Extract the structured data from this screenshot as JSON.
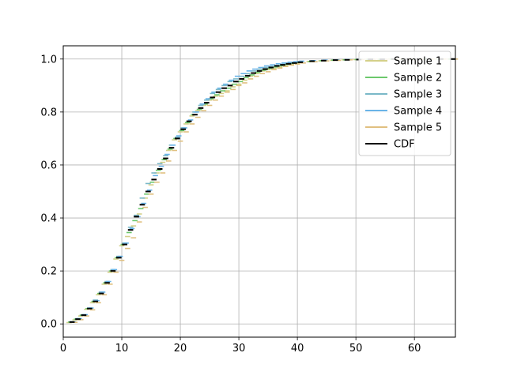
{
  "chart_data": {
    "type": "line",
    "title": "",
    "xlabel": "",
    "ylabel": "",
    "xlim": [
      0,
      67
    ],
    "ylim": [
      -0.05,
      1.05
    ],
    "xticks": [
      0,
      10,
      20,
      30,
      40,
      50,
      60
    ],
    "yticks": [
      0.0,
      0.2,
      0.4,
      0.6,
      0.8,
      1.0
    ],
    "xtick_labels": [
      "0",
      "10",
      "20",
      "30",
      "40",
      "50",
      "60"
    ],
    "ytick_labels": [
      "0.0",
      "0.2",
      "0.4",
      "0.6",
      "0.8",
      "1.0"
    ],
    "grid": true,
    "legend_position": "top-right",
    "x": [
      1.5,
      2.5,
      3.5,
      4.5,
      5.5,
      6.5,
      7.5,
      8.5,
      9.5,
      10.5,
      11.5,
      12.5,
      13.5,
      14.5,
      15.5,
      16.5,
      17.5,
      18.5,
      19.5,
      20.5,
      21.5,
      22.5,
      23.5,
      24.5,
      25.5,
      26.5,
      27.5,
      28.5,
      29.5,
      30.5,
      31.5,
      32.5,
      33.5,
      34.5,
      35.5,
      36.5,
      37.5,
      38.5,
      39.5,
      40.5,
      42.5,
      44.5,
      46.5,
      48.5,
      50.5,
      52.5,
      54.5,
      56.5,
      58.5,
      60.5,
      62.5,
      64.5,
      66.5
    ],
    "series": [
      {
        "name": "Sample 1",
        "color": "#d4d08a",
        "values": [
          0.005,
          0.015,
          0.03,
          0.055,
          0.08,
          0.11,
          0.15,
          0.195,
          0.245,
          0.295,
          0.33,
          0.37,
          0.415,
          0.475,
          0.525,
          0.57,
          0.61,
          0.655,
          0.695,
          0.725,
          0.755,
          0.785,
          0.805,
          0.825,
          0.845,
          0.86,
          0.87,
          0.88,
          0.895,
          0.905,
          0.92,
          0.935,
          0.945,
          0.955,
          0.96,
          0.965,
          0.97,
          0.975,
          0.98,
          0.985,
          0.99,
          0.993,
          0.995,
          0.997,
          0.998,
          0.999,
          0.999,
          1.0,
          1.0,
          1.0,
          1.0,
          1.0,
          1.0
        ]
      },
      {
        "name": "Sample 2",
        "color": "#6cc86c",
        "values": [
          0.007,
          0.018,
          0.033,
          0.058,
          0.085,
          0.115,
          0.155,
          0.2,
          0.25,
          0.3,
          0.345,
          0.39,
          0.435,
          0.49,
          0.535,
          0.58,
          0.62,
          0.66,
          0.7,
          0.73,
          0.76,
          0.79,
          0.81,
          0.83,
          0.85,
          0.865,
          0.88,
          0.89,
          0.905,
          0.915,
          0.93,
          0.94,
          0.95,
          0.958,
          0.965,
          0.97,
          0.975,
          0.98,
          0.984,
          0.987,
          0.991,
          0.994,
          0.996,
          0.997,
          0.998,
          0.999,
          0.999,
          1.0,
          1.0,
          1.0,
          1.0,
          1.0,
          1.0
        ]
      },
      {
        "name": "Sample 3",
        "color": "#7ab8c8",
        "values": [
          0.008,
          0.02,
          0.035,
          0.06,
          0.09,
          0.12,
          0.16,
          0.205,
          0.255,
          0.305,
          0.365,
          0.41,
          0.475,
          0.53,
          0.57,
          0.605,
          0.635,
          0.675,
          0.705,
          0.74,
          0.765,
          0.8,
          0.825,
          0.845,
          0.87,
          0.885,
          0.9,
          0.915,
          0.925,
          0.935,
          0.945,
          0.955,
          0.962,
          0.968,
          0.972,
          0.976,
          0.98,
          0.984,
          0.987,
          0.99,
          0.993,
          0.995,
          0.997,
          0.998,
          0.999,
          0.999,
          1.0,
          1.0,
          1.0,
          1.0,
          1.0,
          1.0,
          1.0
        ]
      },
      {
        "name": "Sample 4",
        "color": "#6ab4e8",
        "values": [
          0.008,
          0.02,
          0.035,
          0.06,
          0.088,
          0.12,
          0.16,
          0.205,
          0.255,
          0.305,
          0.36,
          0.405,
          0.455,
          0.505,
          0.56,
          0.595,
          0.64,
          0.675,
          0.71,
          0.74,
          0.77,
          0.8,
          0.83,
          0.85,
          0.875,
          0.89,
          0.905,
          0.92,
          0.935,
          0.945,
          0.955,
          0.962,
          0.968,
          0.974,
          0.978,
          0.982,
          0.985,
          0.988,
          0.99,
          0.992,
          0.994,
          0.996,
          0.997,
          0.998,
          0.999,
          1.0,
          1.0,
          1.0,
          1.0,
          1.0,
          1.0,
          1.0,
          1.0
        ]
      },
      {
        "name": "Sample 5",
        "color": "#e0c080",
        "values": [
          0.006,
          0.016,
          0.03,
          0.053,
          0.08,
          0.11,
          0.15,
          0.195,
          0.24,
          0.285,
          0.325,
          0.385,
          0.44,
          0.49,
          0.535,
          0.57,
          0.615,
          0.655,
          0.69,
          0.725,
          0.755,
          0.78,
          0.805,
          0.825,
          0.845,
          0.86,
          0.875,
          0.885,
          0.9,
          0.91,
          0.925,
          0.935,
          0.945,
          0.952,
          0.96,
          0.966,
          0.972,
          0.977,
          0.981,
          0.985,
          0.99,
          0.993,
          0.995,
          0.997,
          0.998,
          0.999,
          0.999,
          1.0,
          1.0,
          1.0,
          1.0,
          1.0,
          1.0
        ]
      },
      {
        "name": "CDF",
        "color": "#000000",
        "values": [
          0.007,
          0.018,
          0.033,
          0.058,
          0.085,
          0.115,
          0.155,
          0.2,
          0.25,
          0.3,
          0.355,
          0.405,
          0.45,
          0.5,
          0.545,
          0.585,
          0.625,
          0.665,
          0.7,
          0.735,
          0.765,
          0.79,
          0.815,
          0.835,
          0.855,
          0.875,
          0.89,
          0.9,
          0.915,
          0.925,
          0.937,
          0.947,
          0.955,
          0.962,
          0.968,
          0.974,
          0.978,
          0.982,
          0.985,
          0.988,
          0.992,
          0.994,
          0.996,
          0.997,
          0.998,
          0.999,
          0.999,
          1.0,
          1.0,
          1.0,
          1.0,
          1.0,
          1.0
        ]
      }
    ]
  }
}
